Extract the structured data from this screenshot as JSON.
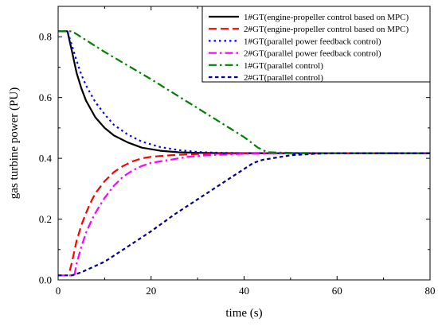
{
  "chart_data": {
    "type": "line",
    "title": "",
    "xlabel": "time (s)",
    "ylabel": "gas turbine power (PU)",
    "xlim": [
      0,
      80
    ],
    "ylim": [
      0,
      0.9
    ],
    "x_ticks": [
      "0",
      "20",
      "40",
      "60",
      "80"
    ],
    "y_ticks": [
      "0.0",
      "0.2",
      "0.4",
      "0.6",
      "0.8"
    ],
    "grid": false,
    "legend_position": "top-right",
    "series": [
      {
        "name": "1#GT(engine-propeller control based on MPC)",
        "color": "#000000",
        "dash": "solid",
        "x": [
          0,
          2,
          3,
          4,
          5,
          6,
          8,
          10,
          12,
          15,
          18,
          22,
          26,
          30,
          35,
          40,
          45,
          60,
          80
        ],
        "y": [
          0.818,
          0.818,
          0.75,
          0.68,
          0.63,
          0.59,
          0.535,
          0.5,
          0.475,
          0.452,
          0.435,
          0.425,
          0.42,
          0.418,
          0.417,
          0.417,
          0.417,
          0.417,
          0.417
        ]
      },
      {
        "name": "2#GT(engine-propeller control based on MPC)",
        "color": "#ff0000",
        "dash": "long-dash",
        "x": [
          2.5,
          3,
          4,
          5,
          6,
          7,
          8,
          10,
          12,
          14,
          16,
          18,
          20,
          24,
          28,
          32,
          40,
          60,
          80
        ],
        "y": [
          0.03,
          0.06,
          0.13,
          0.18,
          0.22,
          0.255,
          0.285,
          0.325,
          0.355,
          0.375,
          0.39,
          0.4,
          0.405,
          0.41,
          0.413,
          0.415,
          0.416,
          0.417,
          0.417
        ]
      },
      {
        "name": "1#GT(parallel power feedback control)",
        "color": "#0000ff",
        "dash": "dot",
        "x": [
          0,
          2,
          3,
          4,
          5,
          6,
          8,
          10,
          12,
          15,
          18,
          22,
          26,
          30,
          35,
          40,
          60,
          80
        ],
        "y": [
          0.818,
          0.818,
          0.77,
          0.72,
          0.675,
          0.64,
          0.585,
          0.545,
          0.51,
          0.478,
          0.455,
          0.437,
          0.427,
          0.421,
          0.418,
          0.417,
          0.417,
          0.417
        ]
      },
      {
        "name": "2#GT(parallel power feedback control)",
        "color": "#ff00ff",
        "dash": "dash-dot",
        "x": [
          0,
          3.5,
          4,
          5,
          6,
          7,
          8,
          10,
          12,
          14,
          16,
          18,
          20,
          24,
          28,
          32,
          40,
          60,
          80
        ],
        "y": [
          0.015,
          0.015,
          0.055,
          0.11,
          0.155,
          0.19,
          0.22,
          0.27,
          0.31,
          0.34,
          0.36,
          0.375,
          0.385,
          0.395,
          0.405,
          0.41,
          0.415,
          0.417,
          0.417
        ]
      },
      {
        "name": "1#GT(parallel control)",
        "color": "#008000",
        "dash": "dash-dot",
        "x": [
          0,
          3,
          10,
          20,
          30,
          40,
          43,
          45,
          50,
          60,
          80
        ],
        "y": [
          0.818,
          0.818,
          0.75,
          0.66,
          0.565,
          0.47,
          0.435,
          0.42,
          0.418,
          0.417,
          0.417
        ]
      },
      {
        "name": "2#GT(parallel control)",
        "color": "#00008b",
        "dash": "short-dash",
        "x": [
          0,
          3,
          5,
          10,
          15,
          20,
          25,
          30,
          35,
          40,
          42,
          44,
          46,
          50,
          55,
          60,
          80
        ],
        "y": [
          0.015,
          0.015,
          0.025,
          0.06,
          0.11,
          0.16,
          0.215,
          0.265,
          0.315,
          0.365,
          0.385,
          0.395,
          0.4,
          0.41,
          0.415,
          0.417,
          0.417
        ]
      }
    ]
  }
}
